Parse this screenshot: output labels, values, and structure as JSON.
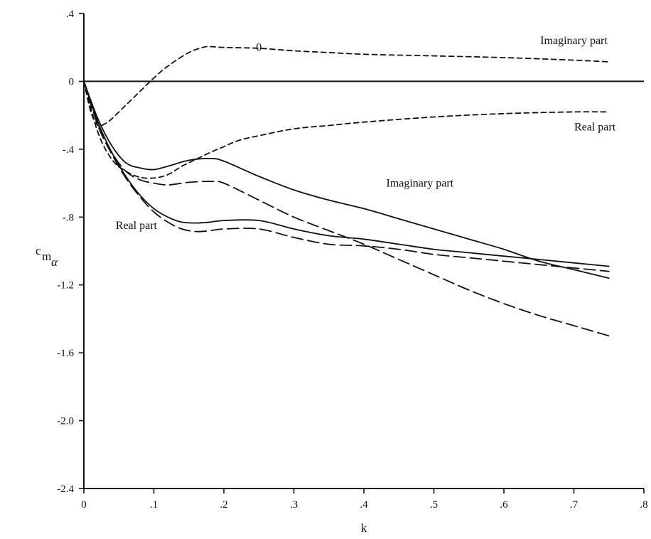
{
  "chart_data": {
    "type": "line",
    "xlabel": "k",
    "ylabel": "c_m_α",
    "ylabel_main": "c",
    "ylabel_sub": "m",
    "ylabel_subsub": "α",
    "xlim": [
      0,
      0.8
    ],
    "ylim": [
      -2.4,
      0.4
    ],
    "xticks": [
      0,
      0.1,
      0.2,
      0.3,
      0.4,
      0.5,
      0.6,
      0.7,
      0.8
    ],
    "xtick_labels": [
      "0",
      ".1",
      ".2",
      ".3",
      ".4",
      ".5",
      ".6",
      ".7",
      ".8"
    ],
    "yticks": [
      0.4,
      0,
      -0.4,
      -0.8,
      -1.2,
      -1.6,
      -2.0,
      -2.4
    ],
    "ytick_labels": [
      ".4",
      "0",
      "-.4",
      "-.8",
      "-1.2",
      "-1.6",
      "-2.0",
      "-2.4"
    ],
    "grid": false,
    "annotations": [
      {
        "text": "Imaginary part",
        "x": 0.7,
        "y": 0.22
      },
      {
        "text": "Real part",
        "x": 0.73,
        "y": -0.29
      },
      {
        "text": "Imaginary part",
        "x": 0.48,
        "y": -0.62
      },
      {
        "text": "Real part",
        "x": 0.075,
        "y": -0.87
      },
      {
        "text": "0",
        "x": 0.25,
        "y": 0.18
      }
    ],
    "series": [
      {
        "style": "solid",
        "x": [
          0,
          0.02,
          0.04,
          0.06,
          0.08,
          0.1,
          0.12,
          0.15,
          0.18,
          0.2,
          0.25,
          0.3,
          0.35,
          0.4,
          0.45,
          0.5,
          0.55,
          0.6,
          0.65,
          0.7,
          0.75
        ],
        "y": [
          0,
          -0.22,
          -0.38,
          -0.48,
          -0.51,
          -0.52,
          -0.5,
          -0.465,
          -0.455,
          -0.47,
          -0.56,
          -0.64,
          -0.7,
          -0.75,
          -0.81,
          -0.87,
          -0.93,
          -0.99,
          -1.06,
          -1.11,
          -1.16
        ]
      },
      {
        "style": "solid",
        "x": [
          0,
          0.02,
          0.04,
          0.06,
          0.08,
          0.1,
          0.12,
          0.14,
          0.16,
          0.18,
          0.2,
          0.25,
          0.3,
          0.35,
          0.4,
          0.45,
          0.5,
          0.55,
          0.6,
          0.65,
          0.7,
          0.75
        ],
        "y": [
          0,
          -0.24,
          -0.42,
          -0.56,
          -0.67,
          -0.75,
          -0.8,
          -0.83,
          -0.835,
          -0.83,
          -0.82,
          -0.82,
          -0.87,
          -0.91,
          -0.93,
          -0.96,
          -0.99,
          -1.01,
          -1.03,
          -1.05,
          -1.07,
          -1.09
        ]
      },
      {
        "style": "long-dash",
        "x": [
          0,
          0.02,
          0.04,
          0.06,
          0.08,
          0.1,
          0.12,
          0.15,
          0.18,
          0.2,
          0.25,
          0.3,
          0.35,
          0.4,
          0.45,
          0.5,
          0.55,
          0.6,
          0.65,
          0.7,
          0.75
        ],
        "y": [
          0,
          -0.25,
          -0.42,
          -0.53,
          -0.58,
          -0.6,
          -0.61,
          -0.595,
          -0.59,
          -0.6,
          -0.7,
          -0.8,
          -0.88,
          -0.96,
          -1.05,
          -1.14,
          -1.23,
          -1.31,
          -1.38,
          -1.44,
          -1.5
        ]
      },
      {
        "style": "long-dash",
        "x": [
          0,
          0.02,
          0.04,
          0.06,
          0.08,
          0.1,
          0.12,
          0.14,
          0.16,
          0.18,
          0.2,
          0.25,
          0.3,
          0.35,
          0.4,
          0.45,
          0.5,
          0.55,
          0.6,
          0.65,
          0.7,
          0.75
        ],
        "y": [
          0,
          -0.26,
          -0.43,
          -0.57,
          -0.68,
          -0.77,
          -0.83,
          -0.87,
          -0.885,
          -0.88,
          -0.87,
          -0.87,
          -0.92,
          -0.96,
          -0.97,
          -0.99,
          -1.02,
          -1.04,
          -1.06,
          -1.08,
          -1.1,
          -1.12
        ]
      },
      {
        "style": "short-dash",
        "x": [
          0,
          0.01,
          0.02,
          0.03,
          0.04,
          0.06,
          0.08,
          0.1,
          0.12,
          0.15,
          0.17,
          0.18,
          0.2,
          0.25,
          0.3,
          0.35,
          0.4,
          0.5,
          0.6,
          0.7,
          0.75
        ],
        "y": [
          0,
          -0.18,
          -0.26,
          -0.25,
          -0.22,
          -0.14,
          -0.06,
          0.02,
          0.09,
          0.17,
          0.2,
          0.205,
          0.2,
          0.195,
          0.18,
          0.17,
          0.16,
          0.15,
          0.14,
          0.125,
          0.115
        ]
      },
      {
        "style": "short-dash",
        "x": [
          0,
          0.02,
          0.04,
          0.06,
          0.08,
          0.1,
          0.12,
          0.14,
          0.16,
          0.18,
          0.2,
          0.22,
          0.25,
          0.3,
          0.35,
          0.4,
          0.5,
          0.6,
          0.7,
          0.75
        ],
        "y": [
          0,
          -0.3,
          -0.46,
          -0.53,
          -0.565,
          -0.57,
          -0.55,
          -0.5,
          -0.46,
          -0.42,
          -0.385,
          -0.35,
          -0.32,
          -0.28,
          -0.26,
          -0.24,
          -0.21,
          -0.19,
          -0.18,
          -0.18
        ]
      }
    ]
  }
}
